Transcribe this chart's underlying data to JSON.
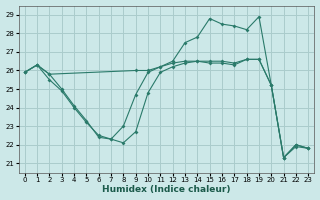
{
  "xlabel": "Humidex (Indice chaleur)",
  "xlim": [
    -0.5,
    23.5
  ],
  "ylim": [
    20.5,
    29.5
  ],
  "yticks": [
    21,
    22,
    23,
    24,
    25,
    26,
    27,
    28,
    29
  ],
  "xticks": [
    0,
    1,
    2,
    3,
    4,
    5,
    6,
    7,
    8,
    9,
    10,
    11,
    12,
    13,
    14,
    15,
    16,
    17,
    18,
    19,
    20,
    21,
    22,
    23
  ],
  "background_color": "#cce8e8",
  "grid_color": "#aacccc",
  "line_color": "#2a7a6a",
  "line1_x": [
    0,
    1,
    2,
    3,
    4,
    5,
    6,
    7,
    8,
    9,
    10,
    11,
    12,
    13,
    14,
    15,
    16,
    17,
    18,
    19,
    20,
    21,
    22,
    23
  ],
  "line1_y": [
    25.9,
    26.3,
    25.8,
    25.0,
    24.1,
    23.3,
    22.4,
    22.3,
    23.0,
    24.7,
    25.9,
    26.2,
    26.5,
    27.5,
    27.8,
    28.8,
    28.5,
    28.4,
    28.2,
    28.9,
    25.2,
    21.3,
    22.0,
    21.8
  ],
  "line2_x": [
    0,
    1,
    2,
    9,
    10,
    11,
    12,
    13,
    14,
    15,
    16,
    17,
    18,
    19,
    20,
    21,
    22,
    23
  ],
  "line2_y": [
    25.9,
    26.3,
    25.8,
    26.0,
    26.0,
    26.2,
    26.4,
    26.5,
    26.5,
    26.5,
    26.5,
    26.4,
    26.6,
    26.6,
    25.2,
    21.3,
    22.0,
    21.8
  ],
  "line3_x": [
    0,
    1,
    2,
    3,
    4,
    5,
    6,
    7,
    8,
    9,
    10,
    11,
    12,
    13,
    14,
    15,
    16,
    17,
    18,
    19,
    20,
    21,
    22,
    23
  ],
  "line3_y": [
    25.9,
    26.3,
    25.5,
    24.9,
    24.0,
    23.2,
    22.5,
    22.3,
    22.1,
    22.7,
    24.8,
    25.9,
    26.2,
    26.4,
    26.5,
    26.4,
    26.4,
    26.3,
    26.6,
    26.6,
    25.2,
    21.3,
    21.9,
    21.8
  ]
}
